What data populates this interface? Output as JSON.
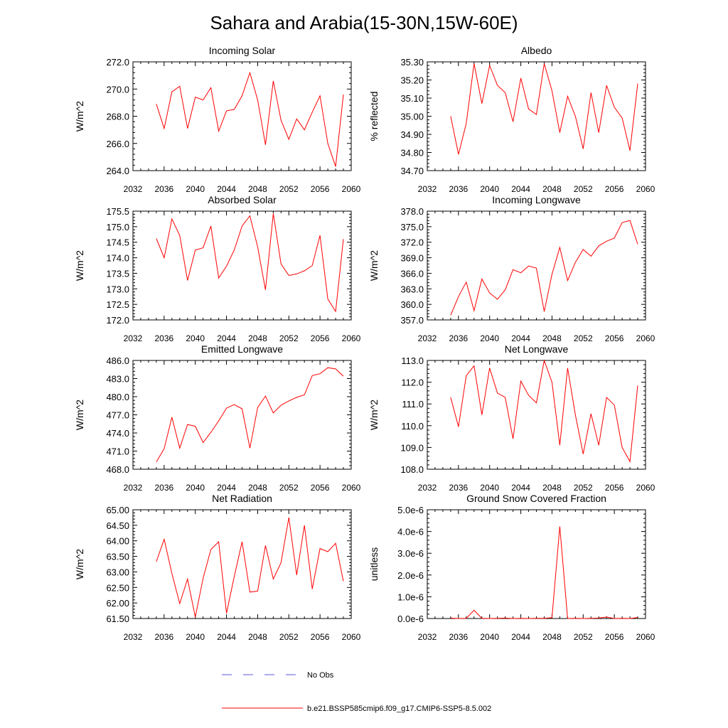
{
  "figure_title": "Sahara and Arabia(15-30N,15W-60E)",
  "legend": {
    "obs_label": "No Obs",
    "obs_color": "#5a5ad8",
    "model_label": "b.e21.BSSP585cmip6.f09_g17.CMIP6-SSP5-8.5.002",
    "model_color": "#ff0000"
  },
  "chart_data": [
    {
      "type": "line",
      "title": "Incoming Solar",
      "ylabel": "W/m^2",
      "xlim": [
        2032,
        2060
      ],
      "x_ticks": [
        "2032",
        "2036",
        "2040",
        "2044",
        "2048",
        "2052",
        "2056",
        "2060"
      ],
      "ylim": [
        264.0,
        272.0
      ],
      "y_ticks": [
        "264.0",
        "266.0",
        "268.0",
        "270.0",
        "272.0"
      ],
      "x": [
        2035,
        2036,
        2037,
        2038,
        2039,
        2040,
        2041,
        2042,
        2043,
        2044,
        2045,
        2046,
        2047,
        2048,
        2049,
        2050,
        2051,
        2052,
        2053,
        2054,
        2055,
        2056,
        2057,
        2058,
        2059
      ],
      "series": [
        {
          "values": [
            268.9,
            267.1,
            269.8,
            270.2,
            267.1,
            269.4,
            269.2,
            270.1,
            266.9,
            268.4,
            268.5,
            269.5,
            271.2,
            269.2,
            265.9,
            270.6,
            267.7,
            266.3,
            267.8,
            267.0,
            268.3,
            269.5,
            266.0,
            264.3,
            269.6
          ]
        }
      ]
    },
    {
      "type": "line",
      "title": "Albedo",
      "ylabel": "% reflected",
      "xlim": [
        2032,
        2060
      ],
      "x_ticks": [
        "2032",
        "2036",
        "2040",
        "2044",
        "2048",
        "2052",
        "2056",
        "2060"
      ],
      "ylim": [
        34.7,
        35.3
      ],
      "y_ticks": [
        "34.70",
        "34.80",
        "34.90",
        "35.00",
        "35.10",
        "35.20",
        "35.30"
      ],
      "x": [
        2035,
        2036,
        2037,
        2038,
        2039,
        2040,
        2041,
        2042,
        2043,
        2044,
        2045,
        2046,
        2047,
        2048,
        2049,
        2050,
        2051,
        2052,
        2053,
        2054,
        2055,
        2056,
        2057,
        2058,
        2059
      ],
      "series": [
        {
          "values": [
            35.0,
            34.79,
            34.96,
            35.29,
            35.07,
            35.28,
            35.17,
            35.13,
            34.97,
            35.21,
            35.04,
            35.01,
            35.29,
            35.14,
            34.91,
            35.11,
            35.0,
            34.82,
            35.13,
            34.91,
            35.17,
            35.05,
            34.99,
            34.81,
            35.18
          ]
        }
      ]
    },
    {
      "type": "line",
      "title": "Absorbed Solar",
      "ylabel": "W/m^2",
      "xlim": [
        2032,
        2060
      ],
      "x_ticks": [
        "2032",
        "2036",
        "2040",
        "2044",
        "2048",
        "2052",
        "2056",
        "2060"
      ],
      "ylim": [
        172.0,
        175.5
      ],
      "y_ticks": [
        "172.0",
        "172.5",
        "173.0",
        "173.5",
        "174.0",
        "174.5",
        "175.0",
        "175.5"
      ],
      "x": [
        2035,
        2036,
        2037,
        2038,
        2039,
        2040,
        2041,
        2042,
        2043,
        2044,
        2045,
        2046,
        2047,
        2048,
        2049,
        2050,
        2051,
        2052,
        2053,
        2054,
        2055,
        2056,
        2057,
        2058,
        2059
      ],
      "series": [
        {
          "values": [
            174.62,
            174.0,
            175.25,
            174.72,
            173.27,
            174.25,
            174.32,
            175.02,
            173.35,
            173.73,
            174.25,
            175.02,
            175.35,
            174.35,
            172.97,
            175.42,
            173.8,
            173.43,
            173.48,
            173.58,
            173.75,
            174.72,
            172.67,
            172.27,
            174.6
          ]
        }
      ]
    },
    {
      "type": "line",
      "title": "Incoming Longwave",
      "ylabel": "W/m^2",
      "xlim": [
        2032,
        2060
      ],
      "x_ticks": [
        "2032",
        "2036",
        "2040",
        "2044",
        "2048",
        "2052",
        "2056",
        "2060"
      ],
      "ylim": [
        357.0,
        378.0
      ],
      "y_ticks": [
        "357.0",
        "360.0",
        "363.0",
        "366.0",
        "369.0",
        "372.0",
        "375.0",
        "378.0"
      ],
      "x": [
        2035,
        2036,
        2037,
        2038,
        2039,
        2040,
        2041,
        2042,
        2043,
        2044,
        2045,
        2046,
        2047,
        2048,
        2049,
        2050,
        2051,
        2052,
        2053,
        2054,
        2055,
        2056,
        2057,
        2058,
        2059
      ],
      "series": [
        {
          "values": [
            357.9,
            361.5,
            364.3,
            358.8,
            364.9,
            362.2,
            361.0,
            362.8,
            366.7,
            366.1,
            367.4,
            367.0,
            358.6,
            365.8,
            371.0,
            364.6,
            368.1,
            370.6,
            369.3,
            371.3,
            372.2,
            372.8,
            375.8,
            376.2,
            371.6
          ]
        }
      ]
    },
    {
      "type": "line",
      "title": "Emitted Longwave",
      "ylabel": "W/m^2",
      "xlim": [
        2032,
        2060
      ],
      "x_ticks": [
        "2032",
        "2036",
        "2040",
        "2044",
        "2048",
        "2052",
        "2056",
        "2060"
      ],
      "ylim": [
        468.0,
        486.0
      ],
      "y_ticks": [
        "468.0",
        "471.0",
        "474.0",
        "477.0",
        "480.0",
        "483.0",
        "486.0"
      ],
      "x": [
        2035,
        2036,
        2037,
        2038,
        2039,
        2040,
        2041,
        2042,
        2043,
        2044,
        2045,
        2046,
        2047,
        2048,
        2049,
        2050,
        2051,
        2052,
        2053,
        2054,
        2055,
        2056,
        2057,
        2058,
        2059
      ],
      "series": [
        {
          "values": [
            469.2,
            471.4,
            476.6,
            471.5,
            475.4,
            475.1,
            472.4,
            474.1,
            476.0,
            478.1,
            478.7,
            478.0,
            471.5,
            478.2,
            480.1,
            477.3,
            478.6,
            479.3,
            479.9,
            480.3,
            483.5,
            483.8,
            484.8,
            484.6,
            483.4
          ]
        }
      ]
    },
    {
      "type": "line",
      "title": "Net Longwave",
      "ylabel": "W/m^2",
      "xlim": [
        2032,
        2060
      ],
      "x_ticks": [
        "2032",
        "2036",
        "2040",
        "2044",
        "2048",
        "2052",
        "2056",
        "2060"
      ],
      "ylim": [
        108.0,
        113.0
      ],
      "y_ticks": [
        "108.0",
        "109.0",
        "110.0",
        "111.0",
        "112.0",
        "113.0"
      ],
      "x": [
        2035,
        2036,
        2037,
        2038,
        2039,
        2040,
        2041,
        2042,
        2043,
        2044,
        2045,
        2046,
        2047,
        2048,
        2049,
        2050,
        2051,
        2052,
        2053,
        2054,
        2055,
        2056,
        2057,
        2058,
        2059
      ],
      "series": [
        {
          "values": [
            111.3,
            109.95,
            112.3,
            112.75,
            110.5,
            112.65,
            111.5,
            111.3,
            109.4,
            112.05,
            111.4,
            111.05,
            113.0,
            112.0,
            109.1,
            112.65,
            110.5,
            108.7,
            110.55,
            109.1,
            111.3,
            110.95,
            109.0,
            108.35,
            111.85
          ]
        }
      ]
    },
    {
      "type": "line",
      "title": "Net Radiation",
      "ylabel": "W/m^2",
      "xlim": [
        2032,
        2060
      ],
      "x_ticks": [
        "2032",
        "2036",
        "2040",
        "2044",
        "2048",
        "2052",
        "2056",
        "2060"
      ],
      "ylim": [
        61.5,
        65.0
      ],
      "y_ticks": [
        "61.50",
        "62.00",
        "62.50",
        "63.00",
        "63.50",
        "64.00",
        "64.50",
        "65.00"
      ],
      "x": [
        2035,
        2036,
        2037,
        2038,
        2039,
        2040,
        2041,
        2042,
        2043,
        2044,
        2045,
        2046,
        2047,
        2048,
        2049,
        2050,
        2051,
        2052,
        2053,
        2054,
        2055,
        2056,
        2057,
        2058,
        2059
      ],
      "series": [
        {
          "values": [
            63.33,
            64.05,
            62.95,
            61.98,
            62.77,
            61.55,
            62.8,
            63.72,
            63.97,
            61.67,
            62.85,
            63.97,
            62.35,
            62.38,
            63.85,
            62.77,
            63.3,
            64.75,
            62.9,
            64.5,
            62.45,
            63.75,
            63.65,
            63.92,
            62.7
          ]
        }
      ]
    },
    {
      "type": "line",
      "title": "Ground Snow Covered Fraction",
      "ylabel": "unitless",
      "xlim": [
        2032,
        2060
      ],
      "x_ticks": [
        "2032",
        "2036",
        "2040",
        "2044",
        "2048",
        "2052",
        "2056",
        "2060"
      ],
      "ylim": [
        0,
        5e-06
      ],
      "y_ticks": [
        "0.0e-6",
        "1.0e-6",
        "2.0e-6",
        "3.0e-6",
        "4.0e-6",
        "5.0e-6"
      ],
      "x": [
        2035,
        2036,
        2037,
        2038,
        2039,
        2040,
        2041,
        2042,
        2043,
        2044,
        2045,
        2046,
        2047,
        2048,
        2049,
        2050,
        2051,
        2052,
        2053,
        2054,
        2055,
        2056,
        2057,
        2058,
        2059
      ],
      "series": [
        {
          "values": [
            2e-08,
            0,
            1e-08,
            3.8e-07,
            1e-08,
            0,
            1e-08,
            2e-08,
            0,
            1e-08,
            0,
            1e-08,
            1e-08,
            4e-08,
            4.23e-06,
            0,
            1e-08,
            0,
            1e-08,
            2e-08,
            7e-08,
            0,
            1e-08,
            0,
            5e-08
          ]
        }
      ]
    }
  ]
}
